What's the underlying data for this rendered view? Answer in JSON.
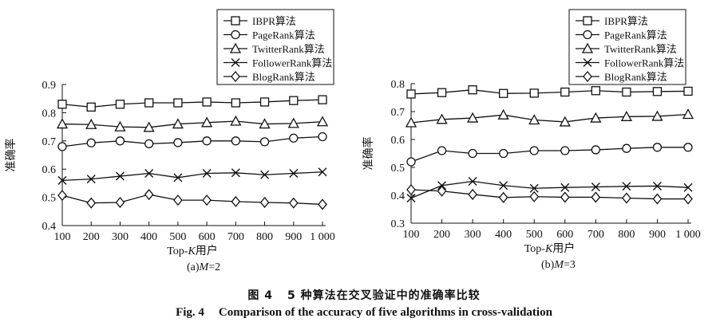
{
  "chart_data": [
    {
      "type": "line",
      "subtitle": "(a)M=2",
      "xlabel": "Top-K用户",
      "ylabel": "准确率",
      "categories": [
        "100",
        "200",
        "300",
        "400",
        "500",
        "600",
        "700",
        "800",
        "900",
        "1 000"
      ],
      "ylim": [
        0.4,
        0.9
      ],
      "yticks": [
        "0.4",
        "0.5",
        "0.6",
        "0.7",
        "0.8",
        "0.9"
      ],
      "legend_position": "top-right",
      "series": [
        {
          "name": "IBPR算法",
          "marker": "square",
          "values": [
            0.83,
            0.82,
            0.83,
            0.835,
            0.835,
            0.838,
            0.835,
            0.838,
            0.843,
            0.846
          ]
        },
        {
          "name": "PageRank算法",
          "marker": "circle",
          "values": [
            0.68,
            0.693,
            0.7,
            0.69,
            0.694,
            0.7,
            0.7,
            0.697,
            0.71,
            0.715
          ]
        },
        {
          "name": "TwitterRank算法",
          "marker": "triangle",
          "values": [
            0.76,
            0.758,
            0.75,
            0.748,
            0.76,
            0.765,
            0.77,
            0.76,
            0.762,
            0.768
          ]
        },
        {
          "name": "FollowerRank算法",
          "marker": "x",
          "values": [
            0.56,
            0.565,
            0.575,
            0.585,
            0.57,
            0.585,
            0.587,
            0.58,
            0.585,
            0.59
          ]
        },
        {
          "name": "BlogRank算法",
          "marker": "diamond",
          "values": [
            0.507,
            0.48,
            0.482,
            0.51,
            0.49,
            0.49,
            0.485,
            0.482,
            0.48,
            0.475
          ]
        }
      ]
    },
    {
      "type": "line",
      "subtitle": "(b)M=3",
      "xlabel": "Top-K用户",
      "ylabel": "准确率",
      "categories": [
        "100",
        "200",
        "300",
        "400",
        "500",
        "600",
        "700",
        "800",
        "900",
        "1 000"
      ],
      "ylim": [
        0.3,
        0.8
      ],
      "yticks": [
        "0.3",
        "0.4",
        "0.5",
        "0.6",
        "0.7",
        "0.8"
      ],
      "legend_position": "top-right",
      "series": [
        {
          "name": "IBPR算法",
          "marker": "square",
          "values": [
            0.763,
            0.768,
            0.778,
            0.765,
            0.766,
            0.77,
            0.775,
            0.77,
            0.772,
            0.773
          ]
        },
        {
          "name": "PageRank算法",
          "marker": "circle",
          "values": [
            0.52,
            0.56,
            0.55,
            0.55,
            0.56,
            0.56,
            0.563,
            0.568,
            0.572,
            0.572
          ]
        },
        {
          "name": "TwitterRank算法",
          "marker": "triangle",
          "values": [
            0.66,
            0.672,
            0.677,
            0.688,
            0.67,
            0.663,
            0.677,
            0.682,
            0.683,
            0.69
          ]
        },
        {
          "name": "FollowerRank算法",
          "marker": "x",
          "values": [
            0.39,
            0.435,
            0.45,
            0.435,
            0.425,
            0.428,
            0.43,
            0.432,
            0.433,
            0.428
          ]
        },
        {
          "name": "BlogRank算法",
          "marker": "diamond",
          "values": [
            0.42,
            0.415,
            0.403,
            0.392,
            0.395,
            0.393,
            0.393,
            0.39,
            0.387,
            0.387
          ]
        }
      ]
    }
  ],
  "caption": {
    "zh_label": "图 4",
    "zh_text": "5 种算法在交叉验证中的准确率比较",
    "en_label": "Fig. 4",
    "en_text": "Comparison of the accuracy of five algorithms in cross-validation"
  }
}
